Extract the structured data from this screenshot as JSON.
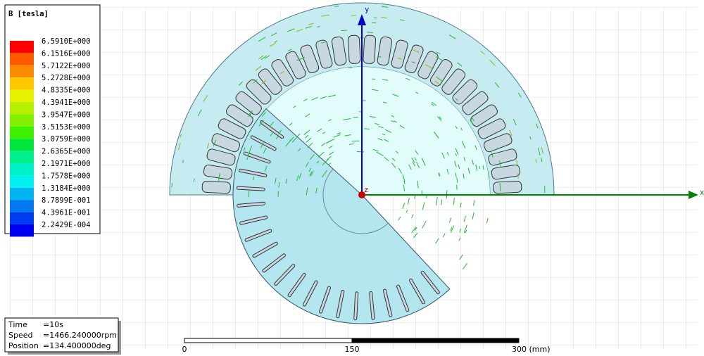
{
  "legend": {
    "title": "B [tesla]",
    "entries": [
      {
        "label": "6.5910E+000",
        "color": "#ff0000"
      },
      {
        "label": "6.1516E+000",
        "color": "#ff5a00"
      },
      {
        "label": "5.7122E+000",
        "color": "#ff8c00"
      },
      {
        "label": "5.2728E+000",
        "color": "#ffc800"
      },
      {
        "label": "4.8335E+000",
        "color": "#e6f000"
      },
      {
        "label": "4.3941E+000",
        "color": "#b4f000"
      },
      {
        "label": "3.9547E+000",
        "color": "#82f000"
      },
      {
        "label": "3.5153E+000",
        "color": "#3cf000"
      },
      {
        "label": "3.0759E+000",
        "color": "#00e63c"
      },
      {
        "label": "2.6365E+000",
        "color": "#00f08c"
      },
      {
        "label": "2.1971E+000",
        "color": "#00f0c8"
      },
      {
        "label": "1.7578E+000",
        "color": "#00f0f0"
      },
      {
        "label": "1.3184E+000",
        "color": "#00b4f0"
      },
      {
        "label": "8.7899E-001",
        "color": "#0078f0"
      },
      {
        "label": "4.3961E-001",
        "color": "#003cf0"
      },
      {
        "label": "2.2429E-004",
        "color": "#0000f0"
      }
    ]
  },
  "info": {
    "rows": [
      [
        "Time",
        "=10s"
      ],
      [
        "Speed",
        "=1466.240000rpm"
      ],
      [
        "Position",
        "=134.400000deg"
      ]
    ]
  },
  "scale_bar": {
    "labels": [
      "0",
      "150",
      "300 (mm)"
    ]
  },
  "axes": {
    "x": "x",
    "y": "y",
    "z": "z"
  }
}
